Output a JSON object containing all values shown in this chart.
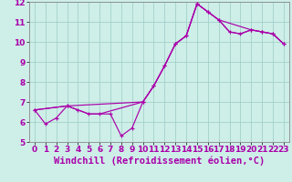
{
  "xlabel": "Windchill (Refroidissement éolien,°C)",
  "xlim": [
    -0.5,
    23.5
  ],
  "ylim": [
    5,
    12
  ],
  "xticks": [
    0,
    1,
    2,
    3,
    4,
    5,
    6,
    7,
    8,
    9,
    10,
    11,
    12,
    13,
    14,
    15,
    16,
    17,
    18,
    19,
    20,
    21,
    22,
    23
  ],
  "yticks": [
    5,
    6,
    7,
    8,
    9,
    10,
    11,
    12
  ],
  "bg_color": "#ceeee8",
  "line_color": "#aa00aa",
  "line1_x": [
    0,
    1,
    2,
    3,
    4,
    5,
    6,
    7,
    8,
    9,
    10,
    11,
    12,
    13,
    14,
    15,
    16,
    17,
    18,
    19,
    20,
    21,
    22,
    23
  ],
  "line1_y": [
    6.6,
    5.9,
    6.2,
    6.8,
    6.6,
    6.4,
    6.4,
    6.4,
    5.3,
    5.7,
    7.0,
    7.8,
    8.8,
    9.9,
    10.3,
    11.9,
    11.5,
    11.1,
    10.5,
    10.4,
    10.6,
    10.5,
    10.4,
    9.9
  ],
  "line2_x": [
    0,
    3,
    10,
    11,
    12,
    13,
    14,
    15,
    16,
    17,
    20,
    21,
    22,
    23
  ],
  "line2_y": [
    6.6,
    6.8,
    7.0,
    7.8,
    8.8,
    9.9,
    10.3,
    11.9,
    11.5,
    11.1,
    10.6,
    10.5,
    10.4,
    9.9
  ],
  "line3_x": [
    0,
    3,
    4,
    5,
    6,
    10,
    11,
    12,
    13,
    14,
    15,
    16,
    17,
    18,
    19,
    20,
    21,
    22,
    23
  ],
  "line3_y": [
    6.6,
    6.8,
    6.6,
    6.4,
    6.4,
    7.0,
    7.8,
    8.8,
    9.9,
    10.3,
    11.9,
    11.5,
    11.1,
    10.5,
    10.4,
    10.6,
    10.5,
    10.4,
    9.9
  ],
  "grid_color": "#99ccc4",
  "tick_fontsize": 6.5,
  "xlabel_fontsize": 7.5,
  "lw": 0.85
}
